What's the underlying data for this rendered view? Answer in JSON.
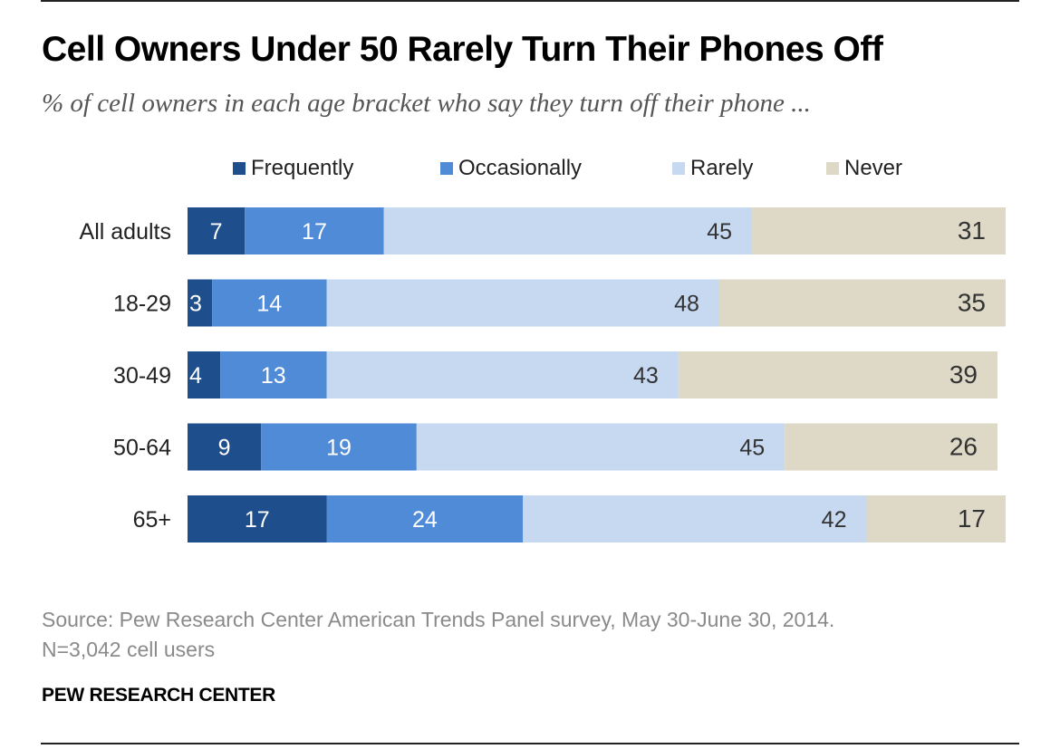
{
  "title": "Cell Owners Under 50 Rarely Turn Their Phones Off",
  "subtitle": "% of cell owners in each age bracket who say they turn off their phone ...",
  "legend": [
    {
      "label": "Frequently",
      "color": "#1f4e8c"
    },
    {
      "label": "Occasionally",
      "color": "#4f8bd6"
    },
    {
      "label": "Rarely",
      "color": "#c6d9f1"
    },
    {
      "label": "Never",
      "color": "#ddd9c6"
    }
  ],
  "chart_data": {
    "type": "bar",
    "orientation": "horizontal",
    "stacked": true,
    "categories": [
      "All adults",
      "18-29",
      "30-49",
      "50-64",
      "65+"
    ],
    "series": [
      {
        "name": "Frequently",
        "values": [
          7,
          3,
          4,
          9,
          17
        ]
      },
      {
        "name": "Occasionally",
        "values": [
          17,
          14,
          13,
          19,
          24
        ]
      },
      {
        "name": "Rarely",
        "values": [
          45,
          48,
          43,
          45,
          42
        ]
      },
      {
        "name": "Never",
        "values": [
          31,
          35,
          39,
          26,
          17
        ]
      }
    ],
    "title": "Cell Owners Under 50 Rarely Turn Their Phones Off",
    "xlabel": "",
    "ylabel": "",
    "xlim": [
      0,
      100
    ],
    "grid": false,
    "legend_position": "top"
  },
  "source": {
    "line1": "Source: Pew Research Center American Trends Panel survey, May 30-June 30, 2014.",
    "line2": "N=3,042 cell users"
  },
  "brand": "PEW RESEARCH CENTER"
}
